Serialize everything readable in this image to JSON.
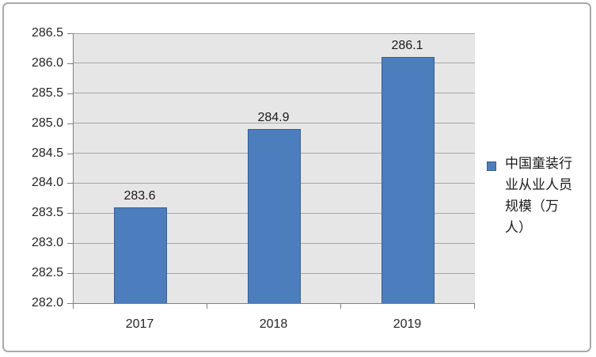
{
  "chart_data": {
    "type": "bar",
    "title": "",
    "categories": [
      "2017",
      "2018",
      "2019"
    ],
    "series": [
      {
        "name": "中国童装行业从业人员规模（万人）",
        "values": [
          283.6,
          284.9,
          286.1
        ]
      }
    ],
    "data_labels": [
      "283.6",
      "284.9",
      "286.1"
    ],
    "xlabel": "",
    "ylabel": "",
    "ylim": [
      282.0,
      286.5
    ],
    "ytick_step": 0.5,
    "ytick_decimals": 1,
    "ytick_labels": [
      "282.0",
      "282.5",
      "283.0",
      "283.5",
      "284.0",
      "284.5",
      "285.0",
      "285.5",
      "286.0",
      "286.5"
    ],
    "grid": "horizontal",
    "legend_position": "right",
    "colors": {
      "bar_fill": "#4C7EBD",
      "bar_border": "#3A5F8F",
      "plot_background": "#E6E6E6",
      "gridline": "#A6A6A6",
      "axis_line": "#808080"
    }
  },
  "legend": {
    "label": "中国童装行业从业人员规模（万人）",
    "lines": [
      "中国童装行",
      "业从业人员",
      "规模（万",
      "人）"
    ]
  }
}
